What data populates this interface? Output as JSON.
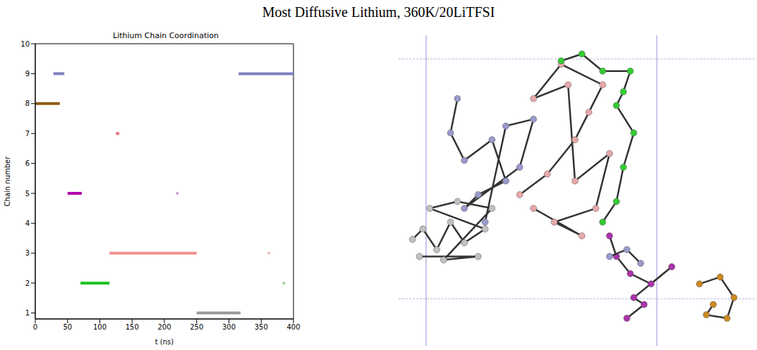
{
  "title": "Most Diffusive Lithium, 360K/20LiTFSI",
  "chart_data": [
    {
      "type": "line",
      "title": "Lithium Chain Coordination",
      "x_label": "t (ns)",
      "y_label": "Chain number",
      "xlim": [
        0,
        400
      ],
      "xticks": [
        0,
        50,
        100,
        150,
        200,
        250,
        300,
        350,
        400
      ],
      "ylim": [
        0.8,
        10
      ],
      "yticks": [
        1,
        2,
        3,
        4,
        5,
        6,
        7,
        8,
        9,
        10
      ],
      "segments": [
        {
          "color": "#8b5a0a",
          "chain": 8,
          "t": [
            0,
            38
          ]
        },
        {
          "color": "#8080c0",
          "chain": 9,
          "t": [
            28,
            45
          ]
        },
        {
          "color": "#b000b0",
          "chain": 5,
          "t": [
            50,
            72
          ]
        },
        {
          "color": "#20c020",
          "chain": 2,
          "t": [
            70,
            115
          ]
        },
        {
          "color": "#f09090",
          "chain": 3,
          "t": [
            115,
            250
          ]
        },
        {
          "color": "#e07080",
          "chain": 7,
          "t": [
            125,
            130
          ]
        },
        {
          "color": "#999999",
          "chain": 1,
          "t": [
            250,
            318
          ]
        },
        {
          "color": "#8080c0",
          "chain": 9,
          "t": [
            315,
            400
          ]
        }
      ],
      "points": [
        {
          "color": "#cc99cc",
          "t": 220,
          "chain": 5
        },
        {
          "color": "#f0b0b0",
          "t": 362,
          "chain": 3
        },
        {
          "color": "#a0d0a0",
          "t": 385,
          "chain": 2
        }
      ]
    },
    {
      "type": "scatter",
      "tick_labels": false,
      "marker": "circle",
      "line_style": "solid",
      "xlim": [
        0,
        500
      ],
      "ylim": [
        0,
        440
      ],
      "series": [
        {
          "color": "#c0c0c0",
          "points": [
            [
              15,
              151
            ],
            [
              30,
              166
            ],
            [
              50,
              136
            ],
            [
              70,
              176
            ],
            [
              90,
              146
            ],
            [
              120,
              166
            ],
            [
              40,
              196
            ],
            [
              80,
              206
            ],
            [
              130,
              196
            ],
            [
              60,
              121
            ],
            [
              110,
              126
            ],
            [
              25,
              126
            ]
          ]
        },
        {
          "color": "#9999cc",
          "points": [
            [
              80,
              356
            ],
            [
              70,
              306
            ],
            [
              90,
              266
            ],
            [
              130,
              296
            ],
            [
              150,
              236
            ],
            [
              110,
              216
            ],
            [
              90,
              196
            ],
            [
              170,
              256
            ],
            [
              190,
              326
            ],
            [
              150,
              316
            ],
            [
              120,
              176
            ]
          ]
        },
        {
          "color": "#e8a8a8",
          "points": [
            [
              170,
              216
            ],
            [
              210,
              246
            ],
            [
              250,
              296
            ],
            [
              270,
              336
            ],
            [
              290,
              376
            ],
            [
              230,
              406
            ],
            [
              190,
              356
            ],
            [
              240,
              376
            ],
            [
              250,
              236
            ],
            [
              300,
              276
            ],
            [
              280,
              196
            ],
            [
              220,
              176
            ],
            [
              260,
              156
            ],
            [
              190,
              196
            ]
          ]
        },
        {
          "color": "#33cc33",
          "points": [
            [
              230,
              411
            ],
            [
              260,
              421
            ],
            [
              290,
              396
            ],
            [
              330,
              396
            ],
            [
              320,
              366
            ],
            [
              310,
              346
            ],
            [
              335,
              306
            ],
            [
              320,
              256
            ],
            [
              310,
              206
            ],
            [
              290,
              176
            ]
          ]
        },
        {
          "color": "#aa33aa",
          "points": [
            [
              300,
              156
            ],
            [
              310,
              126
            ],
            [
              330,
              101
            ],
            [
              360,
              86
            ],
            [
              390,
              111
            ],
            [
              335,
              66
            ],
            [
              350,
              56
            ],
            [
              325,
              36
            ]
          ]
        },
        {
          "color": "#9999cc",
          "points": [
            [
              300,
              126
            ],
            [
              325,
              136
            ],
            [
              345,
              116
            ]
          ]
        },
        {
          "color": "#cc8822",
          "points": [
            [
              430,
              86
            ],
            [
              460,
              96
            ],
            [
              480,
              66
            ],
            [
              470,
              36
            ],
            [
              440,
              41
            ],
            [
              450,
              56
            ]
          ]
        }
      ]
    }
  ]
}
